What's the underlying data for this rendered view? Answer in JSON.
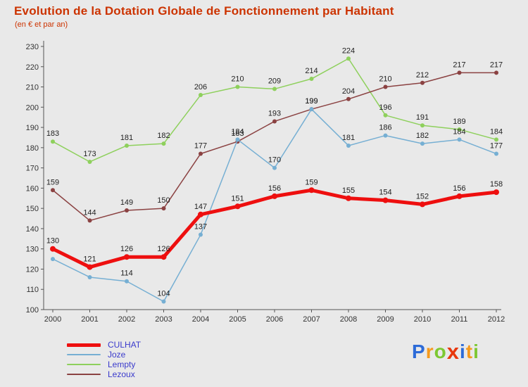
{
  "title": "Evolution de la Dotation Globale de Fonctionnement par Habitant",
  "subtitle": "(en € et par an)",
  "colors": {
    "background": "#e9e9e9",
    "title": "#cc3300",
    "axis": "#555555",
    "tick_text": "#333333",
    "point_label_text": "#222222",
    "legend_text": "#3a3acc"
  },
  "chart_data": {
    "type": "line",
    "x_labels": [
      "2000",
      "2001",
      "2002",
      "2003",
      "2004",
      "2005",
      "2006",
      "2007",
      "2008",
      "2009",
      "2010",
      "2011",
      "2012"
    ],
    "ylim": [
      100,
      230
    ],
    "ytick_step": 10,
    "grid": false,
    "legend_position": "bottom-left",
    "series": [
      {
        "name": "CULHAT",
        "color": "#ee0f0f",
        "line_width": 5,
        "marker_radius": 4,
        "values": [
          130,
          121,
          126,
          126,
          147,
          151,
          156,
          159,
          155,
          154,
          152,
          156,
          158
        ],
        "labels": [
          "130",
          "121",
          "126",
          "126",
          "147",
          "151",
          "156",
          "159",
          "155",
          "154",
          "152",
          "156",
          "158"
        ]
      },
      {
        "name": "Joze",
        "color": "#76afd3",
        "line_width": 1.5,
        "marker_radius": 3,
        "values": [
          125,
          116,
          114,
          104,
          137,
          184,
          170,
          199,
          181,
          186,
          182,
          184,
          177
        ],
        "labels": [
          "",
          "",
          "114",
          "104",
          "137",
          "184",
          "170",
          "199",
          "181",
          "186",
          "182",
          "184",
          "177"
        ]
      },
      {
        "name": "Lempty",
        "color": "#8ed05c",
        "line_width": 1.5,
        "marker_radius": 3,
        "values": [
          183,
          173,
          181,
          182,
          206,
          210,
          209,
          214,
          224,
          196,
          191,
          189,
          184
        ],
        "labels": [
          "183",
          "173",
          "181",
          "182",
          "206",
          "210",
          "209",
          "214",
          "224",
          "196",
          "191",
          "189",
          "184"
        ]
      },
      {
        "name": "Lezoux",
        "color": "#8b4242",
        "line_width": 1.5,
        "marker_radius": 3,
        "values": [
          159,
          144,
          149,
          150,
          177,
          183,
          193,
          199,
          204,
          210,
          212,
          217,
          217
        ],
        "labels": [
          "159",
          "144",
          "149",
          "150",
          "177",
          "183",
          "193",
          "199",
          "204",
          "210",
          "212",
          "217",
          "217"
        ]
      }
    ],
    "draw_order": [
      2,
      3,
      1,
      0
    ]
  },
  "logo": {
    "text": "Proxiti",
    "letters": [
      {
        "ch": "P",
        "color": "#2d6bd8"
      },
      {
        "ch": "r",
        "color": "#f59a1d"
      },
      {
        "ch": "o",
        "color": "#7dc832"
      },
      {
        "ch": "x",
        "color": "#e8380d"
      },
      {
        "ch": "i",
        "color": "#2d6bd8"
      },
      {
        "ch": "t",
        "color": "#f59a1d"
      },
      {
        "ch": "i",
        "color": "#7dc832"
      }
    ]
  }
}
